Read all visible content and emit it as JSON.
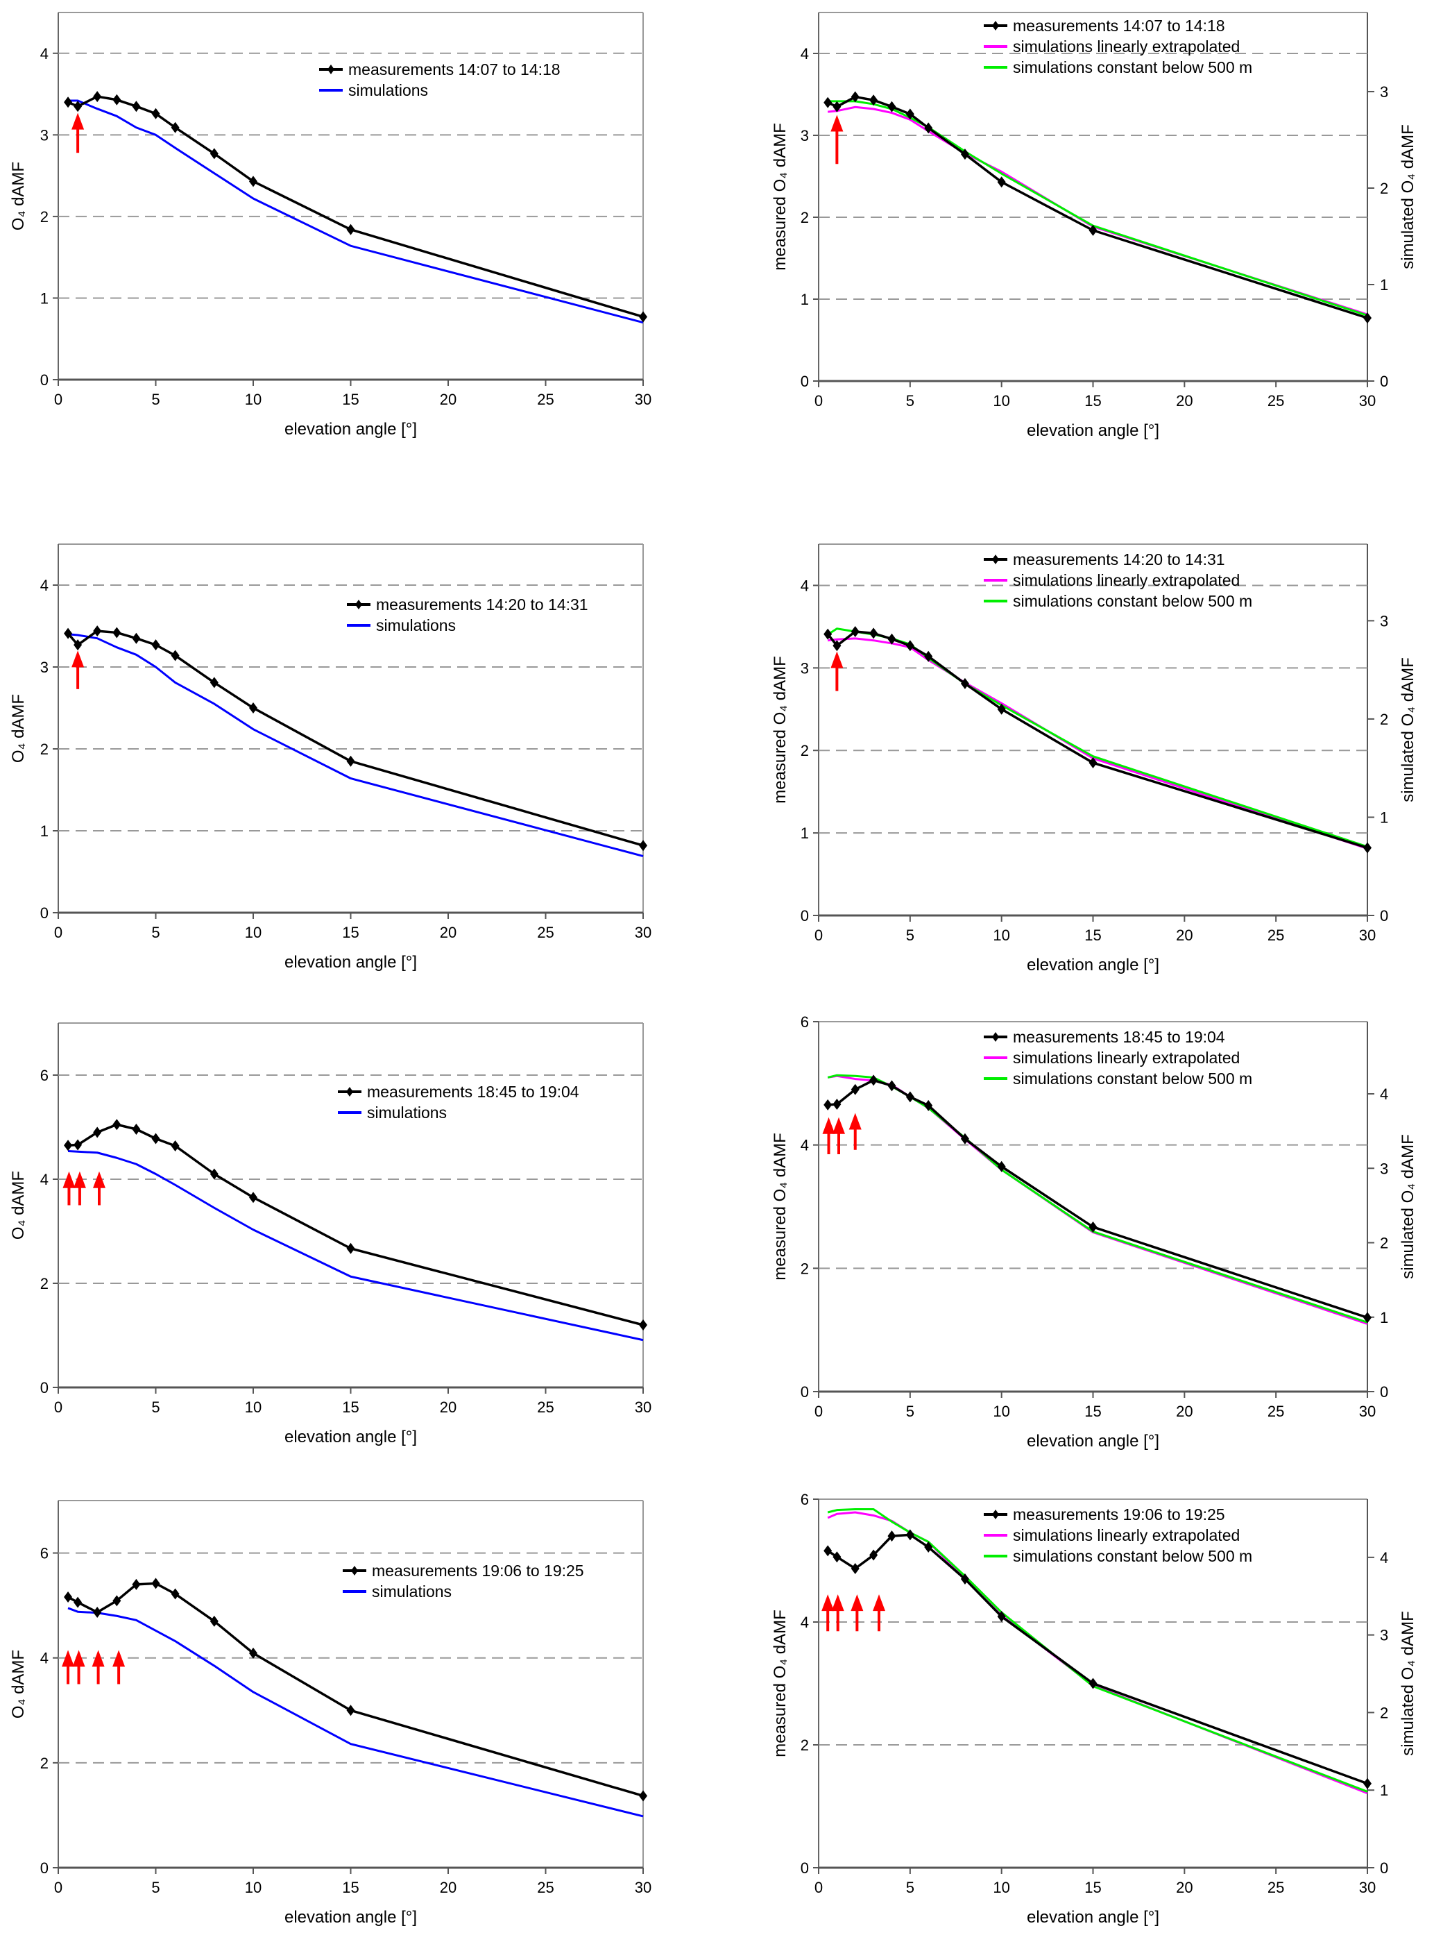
{
  "chart_data": [
    {
      "type": "line",
      "xlabel": "elevation angle [°]",
      "ylabel": "O₄ dAMF",
      "xlim": [
        0,
        30
      ],
      "ylim": [
        0,
        4.5
      ],
      "xticks": [
        "0",
        "5",
        "10",
        "15",
        "20",
        "25",
        "30"
      ],
      "yticks": [
        "0",
        "1",
        "2",
        "3",
        "4"
      ],
      "grid": "dashed horizontal",
      "legend_placement": "top-right",
      "x": [
        0.5,
        1,
        2,
        3,
        4,
        5,
        6,
        8,
        10,
        15,
        30
      ],
      "series": [
        {
          "name": "measurements 14:07 to 14:18",
          "color": "#000000",
          "marker": "diamond",
          "axis": "left",
          "y": [
            3.4,
            3.35,
            3.47,
            3.43,
            3.35,
            3.26,
            3.09,
            2.77,
            2.43,
            1.84,
            0.77
          ]
        },
        {
          "name": "simulations",
          "color": "#0000ff",
          "marker": "none",
          "axis": "left",
          "y": [
            3.42,
            3.42,
            3.32,
            3.23,
            3.09,
            3.0,
            2.84,
            2.53,
            2.22,
            1.64,
            0.7
          ]
        }
      ],
      "arrows": [
        {
          "x": 1,
          "y_from": 2.78,
          "y_to": 3.27
        }
      ]
    },
    {
      "type": "line",
      "xlabel": "elevation angle [°]",
      "ylabel": "measured O₄ dAMF",
      "y2label": "simulated O₄ dAMF",
      "xlim": [
        0,
        30
      ],
      "ylim": [
        0,
        4.5
      ],
      "y2lim": [
        0,
        3.82
      ],
      "xticks": [
        "0",
        "5",
        "10",
        "15",
        "20",
        "25",
        "30"
      ],
      "yticks": [
        "0",
        "1",
        "2",
        "3",
        "4"
      ],
      "y2ticks": [
        "0",
        "1",
        "2",
        "3"
      ],
      "grid": "dashed horizontal",
      "legend_placement": "top-center",
      "x": [
        0.5,
        1,
        2,
        3,
        4,
        5,
        6,
        8,
        10,
        15,
        30
      ],
      "series": [
        {
          "name": "measurements 14:07 to 14:18",
          "color": "#000000",
          "marker": "diamond",
          "axis": "left",
          "y": [
            3.4,
            3.35,
            3.47,
            3.43,
            3.35,
            3.26,
            3.09,
            2.77,
            2.43,
            1.84,
            0.77
          ]
        },
        {
          "name": "simulations linearly extrapolated",
          "color": "#ff00ff",
          "marker": "none",
          "axis": "right",
          "y": [
            2.79,
            2.8,
            2.84,
            2.82,
            2.78,
            2.71,
            2.59,
            2.36,
            2.17,
            1.6,
            0.69
          ]
        },
        {
          "name": "simulations constant below 500 m",
          "color": "#00ee00",
          "marker": "none",
          "axis": "right",
          "y": [
            2.9,
            2.9,
            2.9,
            2.87,
            2.82,
            2.73,
            2.63,
            2.38,
            2.15,
            1.61,
            0.68
          ]
        }
      ],
      "arrows": [
        {
          "x": 1,
          "y_from": 2.65,
          "y_to": 3.25
        }
      ]
    },
    {
      "type": "line",
      "xlabel": "elevation angle [°]",
      "ylabel": "O₄ dAMF",
      "xlim": [
        0,
        30
      ],
      "ylim": [
        0,
        4.5
      ],
      "xticks": [
        "0",
        "5",
        "10",
        "15",
        "20",
        "25",
        "30"
      ],
      "yticks": [
        "0",
        "1",
        "2",
        "3",
        "4"
      ],
      "grid": "dashed horizontal",
      "legend_placement": "top-right",
      "x": [
        0.5,
        1,
        2,
        3,
        4,
        5,
        6,
        8,
        10,
        15,
        30
      ],
      "series": [
        {
          "name": "measurements 14:20 to 14:31",
          "color": "#000000",
          "marker": "diamond",
          "axis": "left",
          "y": [
            3.41,
            3.27,
            3.44,
            3.42,
            3.35,
            3.27,
            3.14,
            2.81,
            2.5,
            1.85,
            0.82
          ]
        },
        {
          "name": "simulations",
          "color": "#0000ff",
          "marker": "none",
          "axis": "left",
          "y": [
            3.4,
            3.39,
            3.35,
            3.24,
            3.15,
            3.0,
            2.81,
            2.55,
            2.24,
            1.64,
            0.69
          ]
        }
      ],
      "arrows": [
        {
          "x": 1,
          "y_from": 2.73,
          "y_to": 3.2
        }
      ]
    },
    {
      "type": "line",
      "xlabel": "elevation angle [°]",
      "ylabel": "measured O₄ dAMF",
      "y2label": "simulated O₄ dAMF",
      "xlim": [
        0,
        30
      ],
      "ylim": [
        0,
        4.5
      ],
      "y2lim": [
        0,
        3.78
      ],
      "xticks": [
        "0",
        "5",
        "10",
        "15",
        "20",
        "25",
        "30"
      ],
      "yticks": [
        "0",
        "1",
        "2",
        "3",
        "4"
      ],
      "y2ticks": [
        "0",
        "1",
        "2",
        "3"
      ],
      "grid": "dashed horizontal",
      "legend_placement": "top-center",
      "x": [
        0.5,
        1,
        2,
        3,
        4,
        5,
        6,
        8,
        10,
        15,
        30
      ],
      "series": [
        {
          "name": "measurements 14:20 to 14:31",
          "color": "#000000",
          "marker": "diamond",
          "axis": "left",
          "y": [
            3.41,
            3.27,
            3.44,
            3.42,
            3.35,
            3.27,
            3.14,
            2.81,
            2.5,
            1.85,
            0.82
          ]
        },
        {
          "name": "simulations linearly extrapolated",
          "color": "#ff00ff",
          "marker": "none",
          "axis": "right",
          "y": [
            2.8,
            2.81,
            2.82,
            2.8,
            2.77,
            2.73,
            2.6,
            2.37,
            2.16,
            1.6,
            0.68
          ]
        },
        {
          "name": "simulations constant below 500 m",
          "color": "#00ee00",
          "marker": "none",
          "axis": "right",
          "y": [
            2.86,
            2.92,
            2.89,
            2.86,
            2.82,
            2.76,
            2.62,
            2.36,
            2.14,
            1.62,
            0.7
          ]
        }
      ],
      "arrows": [
        {
          "x": 1,
          "y_from": 2.72,
          "y_to": 3.2
        }
      ]
    },
    {
      "type": "line",
      "xlabel": "elevation angle [°]",
      "ylabel": "O₄ dAMF",
      "xlim": [
        0,
        30
      ],
      "ylim": [
        0,
        7
      ],
      "xticks": [
        "0",
        "5",
        "10",
        "15",
        "20",
        "25",
        "30"
      ],
      "yticks": [
        "0",
        "2",
        "4",
        "6"
      ],
      "grid": "dashed horizontal",
      "legend_placement": "top-right",
      "x": [
        0.5,
        1,
        2,
        3,
        4,
        5,
        6,
        8,
        10,
        15,
        30
      ],
      "series": [
        {
          "name": "measurements 18:45 to 19:04",
          "color": "#000000",
          "marker": "diamond",
          "axis": "left",
          "y": [
            4.65,
            4.66,
            4.9,
            5.05,
            4.96,
            4.78,
            4.64,
            4.1,
            3.65,
            2.67,
            1.2
          ]
        },
        {
          "name": "simulations",
          "color": "#0000ff",
          "marker": "none",
          "axis": "left",
          "y": [
            4.54,
            4.53,
            4.51,
            4.41,
            4.29,
            4.1,
            3.89,
            3.45,
            3.03,
            2.13,
            0.91
          ]
        }
      ],
      "arrows": [
        {
          "x": 0.55,
          "y_from": 3.5,
          "y_to": 4.15
        },
        {
          "x": 1.1,
          "y_from": 3.5,
          "y_to": 4.15
        },
        {
          "x": 2.1,
          "y_from": 3.5,
          "y_to": 4.15
        }
      ]
    },
    {
      "type": "line",
      "xlabel": "elevation angle [°]",
      "ylabel": "measured O₄ dAMF",
      "y2label": "simulated O₄ dAMF",
      "xlim": [
        0,
        30
      ],
      "ylim": [
        0,
        6
      ],
      "y2lim": [
        0,
        4.97
      ],
      "xticks": [
        "0",
        "5",
        "10",
        "15",
        "20",
        "25",
        "30"
      ],
      "yticks": [
        "0",
        "2",
        "4",
        "6"
      ],
      "y2ticks": [
        "0",
        "1",
        "2",
        "3",
        "4"
      ],
      "grid": "dashed horizontal",
      "legend_placement": "top-center",
      "x": [
        0.5,
        1,
        2,
        3,
        4,
        5,
        6,
        8,
        10,
        15,
        30
      ],
      "series": [
        {
          "name": "measurements 18:45 to 19:04",
          "color": "#000000",
          "marker": "diamond",
          "axis": "left",
          "y": [
            4.65,
            4.66,
            4.9,
            5.05,
            4.96,
            4.78,
            4.64,
            4.1,
            3.65,
            2.67,
            1.2
          ]
        },
        {
          "name": "simulations linearly extrapolated",
          "color": "#ff00ff",
          "marker": "none",
          "axis": "right",
          "y": [
            4.22,
            4.24,
            4.2,
            4.18,
            4.12,
            3.96,
            3.81,
            3.39,
            2.98,
            2.14,
            0.91
          ]
        },
        {
          "name": "simulations constant below 500 m",
          "color": "#00ee00",
          "marker": "none",
          "axis": "right",
          "y": [
            4.22,
            4.25,
            4.24,
            4.22,
            4.1,
            3.96,
            3.81,
            3.41,
            2.98,
            2.15,
            0.93
          ]
        }
      ],
      "arrows": [
        {
          "x": 0.55,
          "y_from": 3.85,
          "y_to": 4.45
        },
        {
          "x": 1.1,
          "y_from": 3.85,
          "y_to": 4.45
        },
        {
          "x": 2.0,
          "y_from": 3.92,
          "y_to": 4.52
        }
      ]
    },
    {
      "type": "line",
      "xlabel": "elevation angle [°]",
      "ylabel": "O₄ dAMF",
      "xlim": [
        0,
        30
      ],
      "ylim": [
        0,
        7
      ],
      "xticks": [
        "0",
        "5",
        "10",
        "15",
        "20",
        "25",
        "30"
      ],
      "yticks": [
        "0",
        "2",
        "4",
        "6"
      ],
      "grid": "dashed horizontal",
      "legend_placement": "top-right",
      "x": [
        0.5,
        1,
        2,
        3,
        4,
        5,
        6,
        8,
        10,
        15,
        30
      ],
      "series": [
        {
          "name": "measurements 19:06 to 19:25",
          "color": "#000000",
          "marker": "diamond",
          "axis": "left",
          "y": [
            5.16,
            5.06,
            4.87,
            5.09,
            5.4,
            5.42,
            5.22,
            4.7,
            4.09,
            3.0,
            1.37
          ]
        },
        {
          "name": "simulations",
          "color": "#0000ff",
          "marker": "none",
          "axis": "left",
          "y": [
            4.95,
            4.88,
            4.86,
            4.8,
            4.72,
            4.52,
            4.32,
            3.85,
            3.35,
            2.36,
            0.98
          ]
        }
      ],
      "arrows": [
        {
          "x": 0.5,
          "y_from": 3.5,
          "y_to": 4.15
        },
        {
          "x": 1.05,
          "y_from": 3.5,
          "y_to": 4.15
        },
        {
          "x": 2.05,
          "y_from": 3.5,
          "y_to": 4.15
        },
        {
          "x": 3.1,
          "y_from": 3.5,
          "y_to": 4.15
        }
      ]
    },
    {
      "type": "line",
      "xlabel": "elevation angle [°]",
      "ylabel": "measured O₄ dAMF",
      "y2label": "simulated O₄ dAMF",
      "xlim": [
        0,
        30
      ],
      "ylim": [
        0,
        6
      ],
      "y2lim": [
        0,
        4.75
      ],
      "xticks": [
        "0",
        "5",
        "10",
        "15",
        "20",
        "25",
        "30"
      ],
      "yticks": [
        "0",
        "2",
        "4",
        "6"
      ],
      "y2ticks": [
        "0",
        "1",
        "2",
        "3",
        "4"
      ],
      "grid": "dashed horizontal",
      "legend_placement": "top-center",
      "x": [
        0.5,
        1,
        2,
        3,
        4,
        5,
        6,
        8,
        10,
        15,
        30
      ],
      "series": [
        {
          "name": "measurements 19:06 to 19:25",
          "color": "#000000",
          "marker": "diamond",
          "axis": "left",
          "y": [
            5.16,
            5.06,
            4.87,
            5.09,
            5.4,
            5.42,
            5.22,
            4.7,
            4.09,
            3.0,
            1.37
          ]
        },
        {
          "name": "simulations linearly extrapolated",
          "color": "#ff00ff",
          "marker": "none",
          "axis": "right",
          "y": [
            4.51,
            4.56,
            4.58,
            4.54,
            4.47,
            4.32,
            4.2,
            3.72,
            3.25,
            2.35,
            0.96
          ]
        },
        {
          "name": "simulations constant below 500 m",
          "color": "#00ee00",
          "marker": "none",
          "axis": "right",
          "y": [
            4.58,
            4.61,
            4.62,
            4.62,
            4.46,
            4.32,
            4.2,
            3.76,
            3.29,
            2.34,
            0.98
          ]
        }
      ],
      "arrows": [
        {
          "x": 0.5,
          "y_from": 3.85,
          "y_to": 4.45
        },
        {
          "x": 1.05,
          "y_from": 3.85,
          "y_to": 4.45
        },
        {
          "x": 2.1,
          "y_from": 3.85,
          "y_to": 4.45
        },
        {
          "x": 3.3,
          "y_from": 3.85,
          "y_to": 4.45
        }
      ]
    }
  ]
}
